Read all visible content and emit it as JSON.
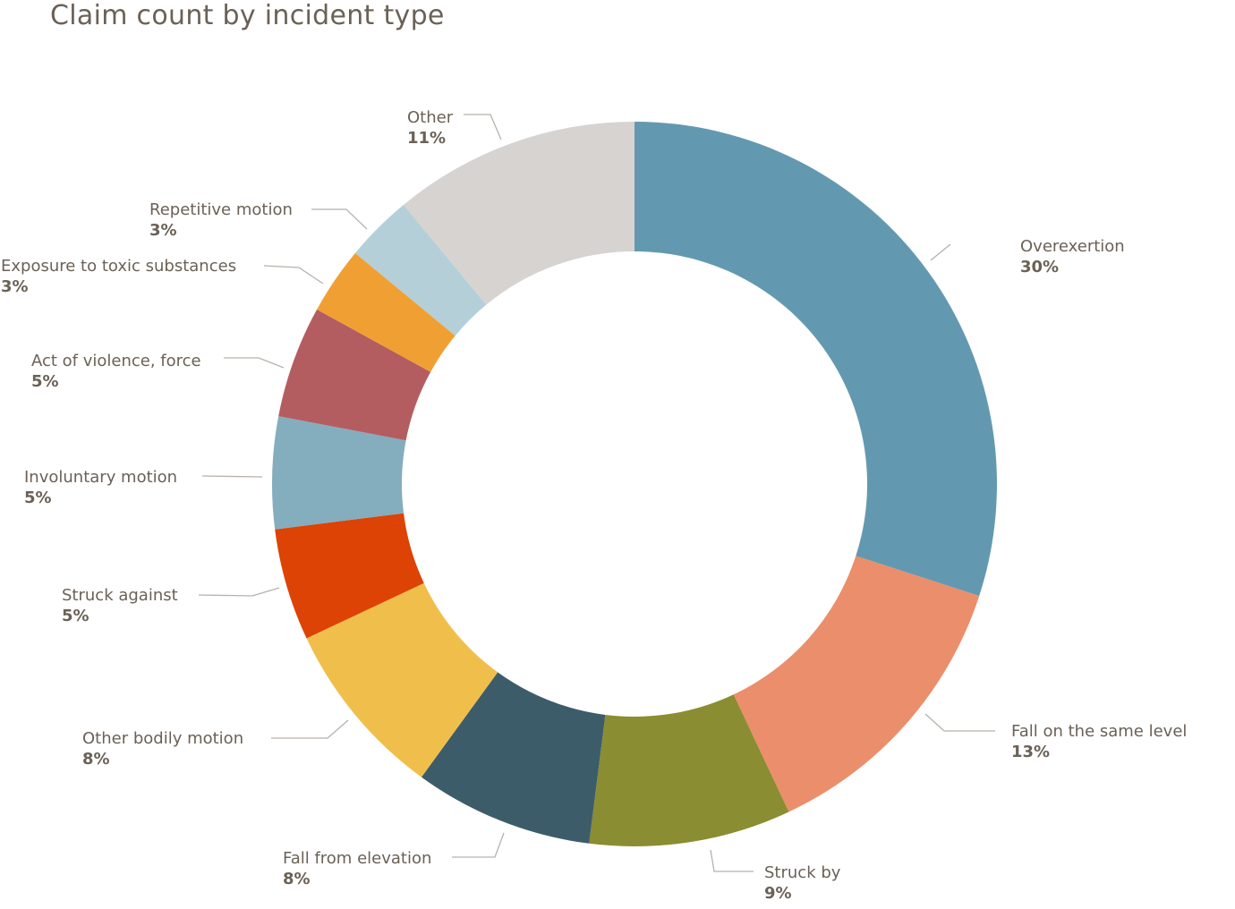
{
  "chart_data": {
    "type": "pie",
    "title": "Claim count by incident type",
    "series": [
      {
        "name": "Overexertion",
        "value": 30,
        "label": "30%",
        "color": "#6399b0"
      },
      {
        "name": "Fall on the same level",
        "value": 13,
        "label": "13%",
        "color": "#eb8e6b"
      },
      {
        "name": "Struck by",
        "value": 9,
        "label": "9%",
        "color": "#8a8d31"
      },
      {
        "name": "Fall from elevation",
        "value": 8,
        "label": "8%",
        "color": "#3d5c6a"
      },
      {
        "name": "Other bodily motion",
        "value": 8,
        "label": "8%",
        "color": "#f0bf4b"
      },
      {
        "name": "Struck against",
        "value": 5,
        "label": "5%",
        "color": "#dc4304"
      },
      {
        "name": "Involuntary motion",
        "value": 5,
        "label": "5%",
        "color": "#84adbe"
      },
      {
        "name": "Act of violence, force",
        "value": 5,
        "label": "5%",
        "color": "#b45d61"
      },
      {
        "name": "Exposure to toxic substances",
        "value": 3,
        "label": "3%",
        "color": "#f0a033"
      },
      {
        "name": "Repetitive motion",
        "value": 3,
        "label": "3%",
        "color": "#b4cfd8"
      },
      {
        "name": "Other",
        "value": 11,
        "label": "11%",
        "color": "#d6d3d0"
      }
    ]
  }
}
